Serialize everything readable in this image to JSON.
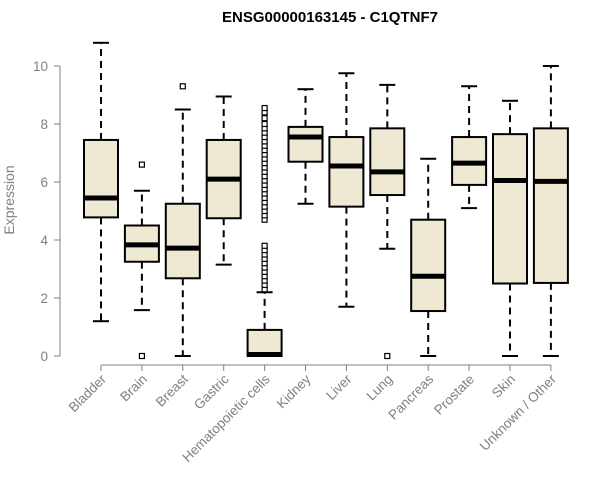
{
  "chart_data": {
    "type": "boxplot",
    "title": "ENSG00000163145 - C1QTNF7",
    "xlabel": "",
    "ylabel": "Expression",
    "ylim": [
      0,
      10.8
    ],
    "yticks": [
      0,
      2,
      4,
      6,
      8,
      10
    ],
    "box_fill": "#efe9d3",
    "axis_color": "#808080",
    "categories": [
      "Bladder",
      "Brain",
      "Breast",
      "Gastric",
      "Hematopoietic cells",
      "Kidney",
      "Liver",
      "Lung",
      "Pancreas",
      "Prostate",
      "Skin",
      "Unknown / Other"
    ],
    "boxes": [
      {
        "min": 1.2,
        "q1": 4.78,
        "median": 5.45,
        "q3": 7.45,
        "max": 10.8,
        "outliers": []
      },
      {
        "min": 1.58,
        "q1": 3.25,
        "median": 3.83,
        "q3": 4.5,
        "max": 5.7,
        "outliers": [
          0.0,
          6.6
        ]
      },
      {
        "min": 0.0,
        "q1": 2.68,
        "median": 3.72,
        "q3": 5.25,
        "max": 8.5,
        "outliers": [
          9.3
        ]
      },
      {
        "min": 3.15,
        "q1": 4.75,
        "median": 6.1,
        "q3": 7.45,
        "max": 8.95,
        "outliers": []
      },
      {
        "min": 0.0,
        "q1": 0.0,
        "median": 0.05,
        "q3": 0.9,
        "max": 2.2,
        "outliers": [
          2.3,
          2.45,
          2.6,
          2.75,
          2.9,
          3.05,
          3.2,
          3.35,
          3.5,
          3.65,
          3.8,
          4.7,
          4.85,
          5.0,
          5.15,
          5.3,
          5.45,
          5.6,
          5.75,
          5.9,
          6.05,
          6.2,
          6.35,
          6.5,
          6.65,
          6.8,
          6.95,
          7.1,
          7.25,
          7.4,
          7.55,
          7.7,
          7.85,
          8.0,
          8.2,
          8.4,
          8.55
        ]
      },
      {
        "min": 5.25,
        "q1": 6.7,
        "median": 7.55,
        "q3": 7.9,
        "max": 9.2,
        "outliers": []
      },
      {
        "min": 1.7,
        "q1": 5.15,
        "median": 6.55,
        "q3": 7.55,
        "max": 9.75,
        "outliers": []
      },
      {
        "min": 3.7,
        "q1": 5.55,
        "median": 6.35,
        "q3": 7.85,
        "max": 9.35,
        "outliers": [
          0.0
        ]
      },
      {
        "min": 0.0,
        "q1": 1.55,
        "median": 2.75,
        "q3": 4.7,
        "max": 6.8,
        "outliers": []
      },
      {
        "min": 5.1,
        "q1": 5.9,
        "median": 6.65,
        "q3": 7.55,
        "max": 9.3,
        "outliers": []
      },
      {
        "min": 0.0,
        "q1": 2.5,
        "median": 6.05,
        "q3": 7.65,
        "max": 8.8,
        "outliers": []
      },
      {
        "min": 0.0,
        "q1": 2.52,
        "median": 6.02,
        "q3": 7.85,
        "max": 10.0,
        "outliers": []
      }
    ]
  }
}
